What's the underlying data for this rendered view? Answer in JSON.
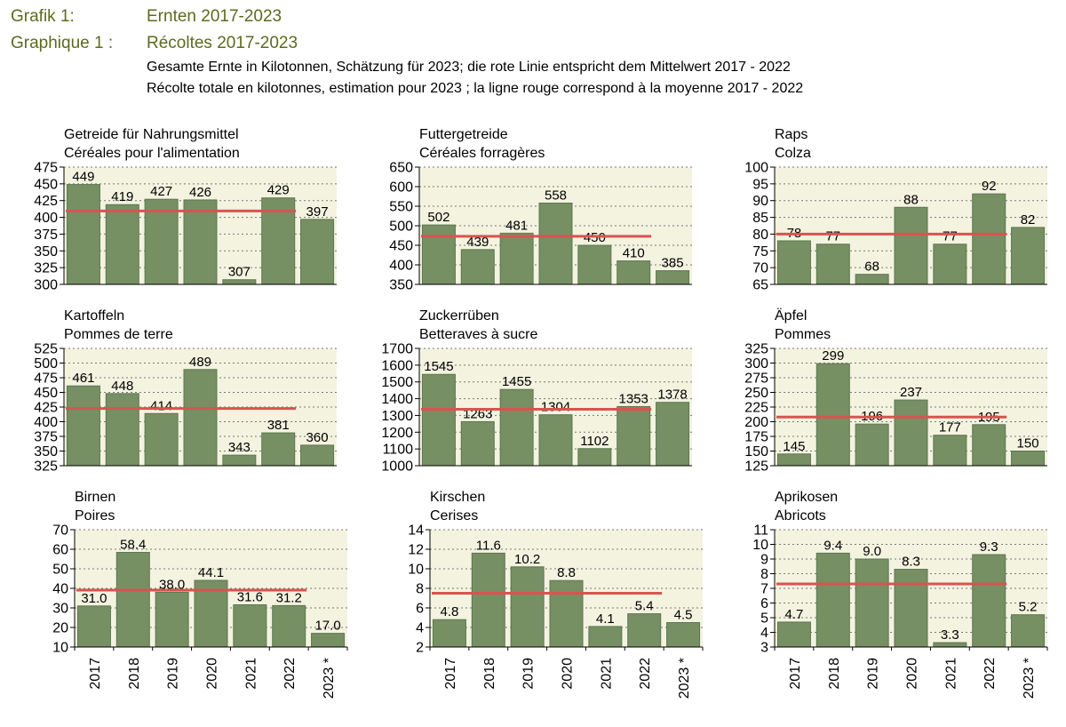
{
  "header": {
    "label_de": "Grafik 1:",
    "title_de": "Ernten 2017-2023",
    "label_fr": "Graphique 1 :",
    "title_fr": "Récoltes 2017-2023",
    "subtitle_de": "Gesamte Ernte in Kilotonnen, Schätzung für 2023; die rote Linie entspricht dem Mittelwert 2017 - 2022",
    "subtitle_fr": "Récolte totale en kilotonnes, estimation pour 2023 ; la ligne rouge correspond à la moyenne 2017 - 2022"
  },
  "colors": {
    "bar": "#768f63",
    "mean_line": "#d9534f",
    "plot_bg": "#f3f3e0",
    "header": "#5c6b1e"
  },
  "chart_data": [
    {
      "type": "bar",
      "title_de": "Getreide für Nahrungsmittel",
      "title_fr": "Céréales pour l'alimentation",
      "categories": [
        "2017",
        "2018",
        "2019",
        "2020",
        "2021",
        "2022",
        "2023 *"
      ],
      "values": [
        449,
        419,
        427,
        426,
        307,
        429,
        397
      ],
      "value_labels": [
        "449",
        "419",
        "427",
        "426",
        "307",
        "429",
        "397"
      ],
      "mean": 409.5,
      "ylim": [
        300,
        475
      ],
      "yticks": [
        300,
        325,
        350,
        375,
        400,
        425,
        450,
        475
      ],
      "grid": true,
      "show_x_labels": false
    },
    {
      "type": "bar",
      "title_de": "Futtergetreide",
      "title_fr": "Céréales forragères",
      "categories": [
        "2017",
        "2018",
        "2019",
        "2020",
        "2021",
        "2022",
        "2023 *"
      ],
      "values": [
        502,
        439,
        481,
        558,
        450,
        410,
        385
      ],
      "value_labels": [
        "502",
        "439",
        "481",
        "558",
        "450",
        "410",
        "385"
      ],
      "mean": 473,
      "ylim": [
        350,
        650
      ],
      "yticks": [
        350,
        400,
        450,
        500,
        550,
        600,
        650
      ],
      "grid": true,
      "show_x_labels": false
    },
    {
      "type": "bar",
      "title_de": "Raps",
      "title_fr": "Colza",
      "categories": [
        "2017",
        "2018",
        "2019",
        "2020",
        "2021",
        "2022",
        "2023 *"
      ],
      "values": [
        78,
        77,
        68,
        88,
        77,
        92,
        82
      ],
      "value_labels": [
        "78",
        "77",
        "68",
        "88",
        "77",
        "92",
        "82"
      ],
      "mean": 80,
      "ylim": [
        65,
        100
      ],
      "yticks": [
        65,
        70,
        75,
        80,
        85,
        90,
        95,
        100
      ],
      "grid": true,
      "show_x_labels": false
    },
    {
      "type": "bar",
      "title_de": "Kartoffeln",
      "title_fr": "Pommes de terre",
      "categories": [
        "2017",
        "2018",
        "2019",
        "2020",
        "2021",
        "2022",
        "2023 *"
      ],
      "values": [
        461,
        448,
        414,
        489,
        343,
        381,
        360
      ],
      "value_labels": [
        "461",
        "448",
        "414",
        "489",
        "343",
        "381",
        "360"
      ],
      "mean": 422.5,
      "ylim": [
        325,
        525
      ],
      "yticks": [
        325,
        350,
        375,
        400,
        425,
        450,
        475,
        500,
        525
      ],
      "grid": true,
      "show_x_labels": false
    },
    {
      "type": "bar",
      "title_de": "Zuckerrüben",
      "title_fr": "Betteraves à sucre",
      "categories": [
        "2017",
        "2018",
        "2019",
        "2020",
        "2021",
        "2022",
        "2023 *"
      ],
      "values": [
        1545,
        1263,
        1455,
        1304,
        1102,
        1353,
        1378
      ],
      "value_labels": [
        "1545",
        "1263",
        "1455",
        "1304",
        "1102",
        "1353",
        "1378"
      ],
      "mean": 1337,
      "ylim": [
        1000,
        1700
      ],
      "yticks": [
        1000,
        1100,
        1200,
        1300,
        1400,
        1500,
        1600,
        1700
      ],
      "grid": true,
      "show_x_labels": false
    },
    {
      "type": "bar",
      "title_de": "Äpfel",
      "title_fr": "Pommes",
      "categories": [
        "2017",
        "2018",
        "2019",
        "2020",
        "2021",
        "2022",
        "2023 *"
      ],
      "values": [
        145,
        299,
        196,
        237,
        177,
        195,
        150
      ],
      "value_labels": [
        "145",
        "299",
        "196",
        "237",
        "177",
        "195",
        "150"
      ],
      "mean": 208,
      "ylim": [
        125,
        325
      ],
      "yticks": [
        125,
        150,
        175,
        200,
        225,
        250,
        275,
        300,
        325
      ],
      "grid": true,
      "show_x_labels": false
    },
    {
      "type": "bar",
      "title_de": "Birnen",
      "title_fr": "Poires",
      "categories": [
        "2017",
        "2018",
        "2019",
        "2020",
        "2021",
        "2022",
        "2023 *"
      ],
      "values": [
        31.0,
        58.4,
        38.0,
        44.1,
        31.6,
        31.2,
        17.0
      ],
      "value_labels": [
        "31.0",
        "58.4",
        "38.0",
        "44.1",
        "31.6",
        "31.2",
        "17.0"
      ],
      "mean": 39.1,
      "ylim": [
        10,
        70
      ],
      "yticks": [
        10,
        20,
        30,
        40,
        50,
        60,
        70
      ],
      "grid": true,
      "show_x_labels": true
    },
    {
      "type": "bar",
      "title_de": "Kirschen",
      "title_fr": "Cerises",
      "categories": [
        "2017",
        "2018",
        "2019",
        "2020",
        "2021",
        "2022",
        "2023 *"
      ],
      "values": [
        4.8,
        11.6,
        10.2,
        8.8,
        4.1,
        5.4,
        4.5
      ],
      "value_labels": [
        "4.8",
        "11.6",
        "10.2",
        "8.8",
        "4.1",
        "5.4",
        "4.5"
      ],
      "mean": 7.5,
      "ylim": [
        2,
        14
      ],
      "yticks": [
        2,
        4,
        6,
        8,
        10,
        12,
        14
      ],
      "grid": true,
      "show_x_labels": true
    },
    {
      "type": "bar",
      "title_de": "Aprikosen",
      "title_fr": "Abricots",
      "categories": [
        "2017",
        "2018",
        "2019",
        "2020",
        "2021",
        "2022",
        "2023 *"
      ],
      "values": [
        4.7,
        9.4,
        9.0,
        8.3,
        3.3,
        9.3,
        5.2
      ],
      "value_labels": [
        "4.7",
        "9.4",
        "9.0",
        "8.3",
        "3.3",
        "9.3",
        "5.2"
      ],
      "mean": 7.3,
      "ylim": [
        3,
        11
      ],
      "yticks": [
        3,
        4,
        5,
        6,
        7,
        8,
        9,
        10,
        11
      ],
      "grid": true,
      "show_x_labels": true
    }
  ]
}
